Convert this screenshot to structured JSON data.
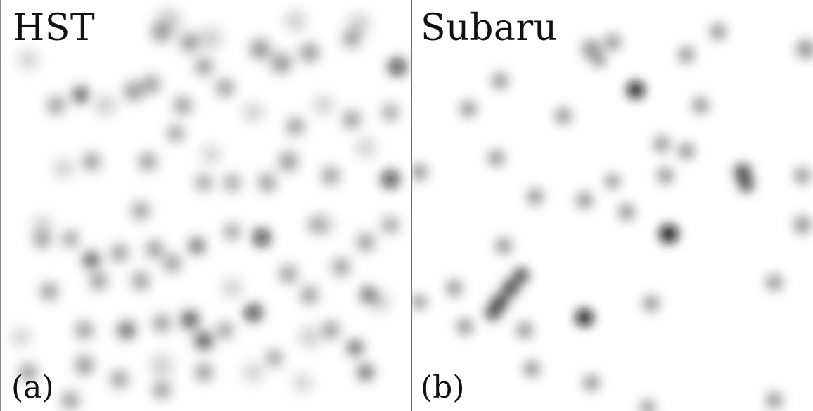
{
  "panels": {
    "left": {
      "title": "HST",
      "tag": "(a)"
    },
    "right": {
      "title": "Subaru",
      "tag": "(b)"
    }
  }
}
